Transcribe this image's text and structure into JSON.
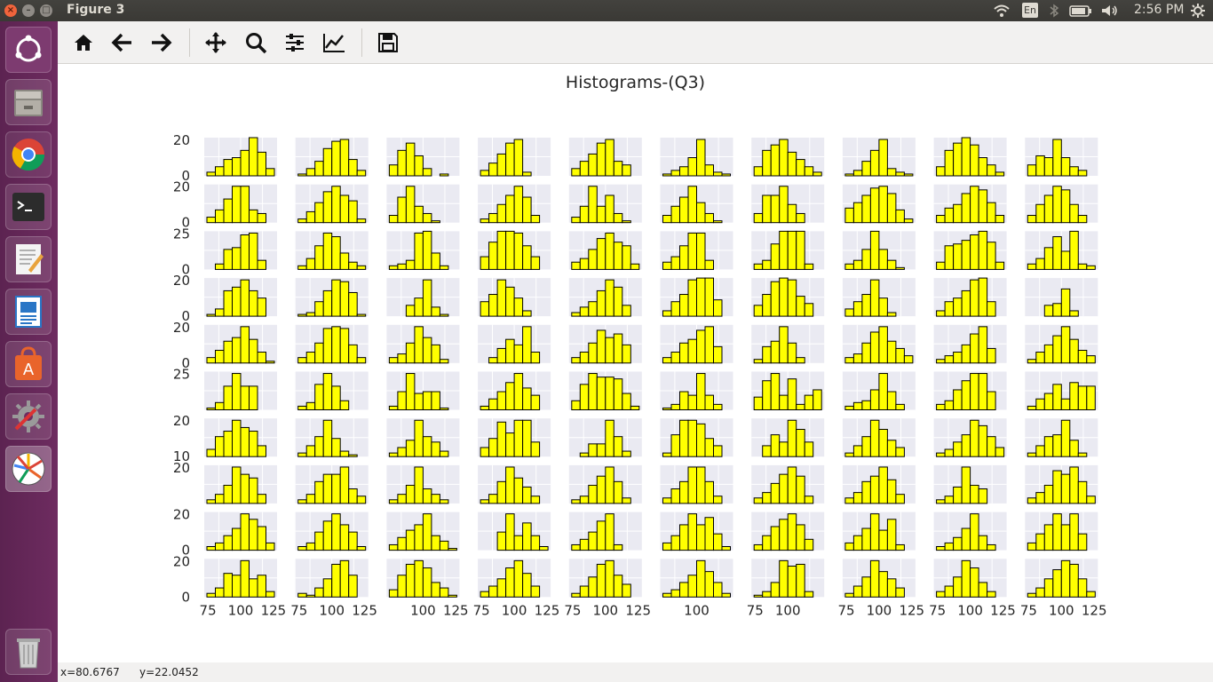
{
  "window": {
    "title": "Figure 3"
  },
  "topbar": {
    "keyboard": "En",
    "clock": "2:56 PM"
  },
  "launcher": {
    "items": [
      "ubuntu-dash-icon",
      "files-icon",
      "chrome-icon",
      "terminal-icon",
      "text-editor-icon",
      "writer-icon",
      "software-center-icon",
      "system-settings-icon",
      "matplotlib-icon",
      "trash-icon"
    ]
  },
  "toolbar": {
    "buttons": [
      "home-icon",
      "back-icon",
      "forward-icon",
      "pan-icon",
      "zoom-icon",
      "configure-subplots-icon",
      "edit-axes-icon",
      "save-icon"
    ]
  },
  "figure": {
    "title": "Histograms-(Q3)"
  },
  "statusbar": {
    "x": "x=80.6767",
    "y": "y=22.0452"
  },
  "chart_data": {
    "type": "bar",
    "grid_rows": 10,
    "grid_cols": 10,
    "bar_color": "#ffff00",
    "edge_color": "#000000",
    "axes_bg": "#eaeaf2",
    "left_ticks": [
      [
        "20",
        "0"
      ],
      [
        "20",
        "0"
      ],
      [
        "25",
        "0"
      ],
      [
        "20",
        "0"
      ],
      [
        "20",
        "0"
      ],
      [
        "25",
        ""
      ],
      [
        "20",
        "10"
      ],
      [
        "20",
        ""
      ],
      [
        "20",
        "0"
      ],
      [
        "20",
        "0"
      ]
    ],
    "bottom_ticks": [
      [
        "75",
        "100",
        "125"
      ],
      [
        "75",
        "100",
        "125"
      ],
      [
        "",
        "100",
        "125"
      ],
      [
        "75",
        "100",
        "125"
      ],
      [
        "75",
        "100",
        "125"
      ],
      [
        "",
        "100",
        ""
      ],
      [
        "75",
        "100",
        ""
      ],
      [
        "75",
        "100",
        "125"
      ],
      [
        "75",
        "100",
        "125"
      ],
      [
        "75",
        "100",
        "125"
      ]
    ],
    "histograms": [
      [
        [
          2,
          5,
          9,
          10,
          14,
          21,
          13,
          4
        ],
        [
          1,
          4,
          8,
          15,
          19,
          20,
          9,
          3
        ],
        [
          6,
          14,
          18,
          11,
          4,
          0,
          1,
          0
        ],
        [
          3,
          7,
          12,
          18,
          20,
          2,
          0,
          0
        ],
        [
          4,
          8,
          12,
          18,
          20,
          8,
          6,
          0
        ],
        [
          1,
          3,
          5,
          10,
          20,
          6,
          2,
          1
        ],
        [
          5,
          14,
          17,
          20,
          13,
          9,
          5,
          2
        ],
        [
          1,
          3,
          8,
          14,
          20,
          4,
          2,
          1
        ],
        [
          5,
          14,
          18,
          25,
          17,
          10,
          6,
          2
        ],
        [
          6,
          11,
          10,
          20,
          10,
          5,
          3,
          0
        ]
      ],
      [
        [
          3,
          7,
          13,
          20,
          20,
          7,
          5,
          0
        ],
        [
          2,
          6,
          11,
          17,
          20,
          15,
          12,
          2
        ],
        [
          4,
          14,
          20,
          9,
          5,
          1,
          0,
          0
        ],
        [
          2,
          5,
          10,
          15,
          20,
          14,
          4,
          0
        ],
        [
          3,
          9,
          20,
          9,
          15,
          5,
          1,
          0
        ],
        [
          4,
          9,
          14,
          20,
          11,
          5,
          1,
          0
        ],
        [
          5,
          15,
          15,
          20,
          10,
          5,
          0,
          0
        ],
        [
          8,
          11,
          15,
          19,
          20,
          16,
          7,
          2
        ],
        [
          4,
          8,
          10,
          16,
          20,
          18,
          11,
          4
        ],
        [
          4,
          10,
          15,
          20,
          18,
          10,
          4,
          0
        ]
      ],
      [
        [
          0,
          3,
          11,
          12,
          19,
          20,
          5,
          0
        ],
        [
          2,
          6,
          13,
          20,
          18,
          9,
          4,
          2
        ],
        [
          2,
          3,
          5,
          20,
          21,
          9,
          2,
          0
        ],
        [
          7,
          15,
          22,
          22,
          20,
          13,
          7,
          0
        ],
        [
          4,
          6,
          11,
          17,
          20,
          15,
          13,
          3
        ],
        [
          4,
          7,
          13,
          20,
          20,
          5,
          0,
          0
        ],
        [
          3,
          5,
          14,
          22,
          25,
          23,
          3,
          0
        ],
        [
          3,
          5,
          11,
          21,
          11,
          5,
          1,
          0
        ],
        [
          4,
          13,
          14,
          16,
          19,
          23,
          15,
          4
        ],
        [
          3,
          6,
          12,
          18,
          10,
          26,
          3,
          2
        ]
      ],
      [
        [
          1,
          4,
          14,
          16,
          20,
          14,
          10,
          0
        ],
        [
          1,
          2,
          8,
          14,
          20,
          19,
          13,
          1
        ],
        [
          0,
          0,
          6,
          10,
          20,
          5,
          1,
          0
        ],
        [
          8,
          12,
          20,
          16,
          10,
          3,
          0,
          0
        ],
        [
          2,
          5,
          8,
          14,
          20,
          16,
          6,
          0
        ],
        [
          3,
          8,
          12,
          20,
          21,
          21,
          9,
          0
        ],
        [
          6,
          12,
          19,
          22,
          20,
          11,
          7,
          0
        ],
        [
          4,
          8,
          12,
          20,
          10,
          2,
          0,
          0
        ],
        [
          3,
          8,
          10,
          14,
          20,
          22,
          8,
          0
        ],
        [
          0,
          0,
          6,
          7,
          15,
          3,
          0,
          0
        ]
      ],
      [
        [
          3,
          7,
          12,
          14,
          20,
          13,
          6,
          1
        ],
        [
          3,
          6,
          11,
          19,
          20,
          19,
          10,
          3
        ],
        [
          3,
          5,
          11,
          20,
          14,
          10,
          2,
          0
        ],
        [
          0,
          3,
          8,
          13,
          10,
          20,
          6,
          0
        ],
        [
          3,
          6,
          11,
          18,
          14,
          16,
          10,
          0
        ],
        [
          3,
          6,
          11,
          13,
          18,
          20,
          9,
          0
        ],
        [
          2,
          9,
          12,
          20,
          11,
          3,
          0,
          0
        ],
        [
          3,
          5,
          11,
          17,
          20,
          12,
          8,
          4
        ],
        [
          2,
          4,
          6,
          10,
          16,
          20,
          8,
          0
        ],
        [
          2,
          6,
          10,
          15,
          20,
          13,
          7,
          4
        ]
      ],
      [
        [
          1,
          4,
          13,
          20,
          13,
          13,
          0,
          0
        ],
        [
          2,
          4,
          14,
          20,
          13,
          5,
          0,
          0
        ],
        [
          2,
          10,
          20,
          9,
          10,
          10,
          1,
          0
        ],
        [
          2,
          6,
          10,
          15,
          20,
          12,
          8,
          0
        ],
        [
          5,
          14,
          20,
          18,
          18,
          17,
          9,
          2
        ],
        [
          1,
          3,
          10,
          8,
          20,
          8,
          3,
          0
        ],
        [
          7,
          16,
          20,
          8,
          17,
          3,
          8,
          11
        ],
        [
          2,
          4,
          5,
          11,
          20,
          10,
          3,
          0
        ],
        [
          3,
          5,
          11,
          16,
          20,
          20,
          10,
          0
        ],
        [
          2,
          6,
          9,
          14,
          6,
          15,
          13,
          13
        ]
      ],
      [
        [
          4,
          11,
          14,
          20,
          16,
          14,
          6,
          0
        ],
        [
          2,
          6,
          11,
          20,
          10,
          3,
          1,
          0
        ],
        [
          2,
          5,
          9,
          20,
          11,
          8,
          3,
          0
        ],
        [
          5,
          10,
          19,
          13,
          20,
          20,
          8,
          0
        ],
        [
          0,
          2,
          7,
          7,
          20,
          11,
          3,
          0
        ],
        [
          2,
          12,
          20,
          20,
          18,
          10,
          6,
          0
        ],
        [
          0,
          6,
          12,
          8,
          20,
          15,
          8,
          0
        ],
        [
          2,
          6,
          11,
          20,
          15,
          9,
          5,
          0
        ],
        [
          2,
          4,
          8,
          12,
          20,
          17,
          11,
          5
        ],
        [
          2,
          6,
          11,
          12,
          20,
          9,
          2,
          0
        ]
      ],
      [
        [
          2,
          5,
          10,
          20,
          16,
          14,
          5,
          0
        ],
        [
          2,
          5,
          12,
          16,
          16,
          20,
          8,
          4
        ],
        [
          2,
          5,
          10,
          20,
          8,
          5,
          2,
          0
        ],
        [
          2,
          5,
          12,
          20,
          14,
          9,
          4,
          0
        ],
        [
          2,
          4,
          10,
          15,
          20,
          12,
          3,
          0
        ],
        [
          3,
          8,
          12,
          20,
          20,
          12,
          4,
          0
        ],
        [
          3,
          6,
          11,
          16,
          20,
          15,
          4,
          0
        ],
        [
          3,
          6,
          12,
          15,
          20,
          13,
          5,
          0
        ],
        [
          2,
          4,
          9,
          20,
          10,
          8,
          0,
          0
        ],
        [
          3,
          6,
          10,
          18,
          16,
          20,
          12,
          4
        ]
      ],
      [
        [
          2,
          4,
          8,
          12,
          20,
          17,
          13,
          4
        ],
        [
          2,
          4,
          10,
          16,
          20,
          14,
          10,
          2
        ],
        [
          3,
          7,
          11,
          14,
          20,
          8,
          5,
          1
        ],
        [
          0,
          0,
          10,
          20,
          8,
          15,
          8,
          2
        ],
        [
          3,
          6,
          10,
          16,
          20,
          3,
          0,
          0
        ],
        [
          4,
          8,
          14,
          20,
          14,
          18,
          9,
          2
        ],
        [
          3,
          8,
          13,
          17,
          20,
          14,
          6,
          0
        ],
        [
          4,
          8,
          12,
          20,
          11,
          17,
          3,
          0
        ],
        [
          2,
          4,
          7,
          12,
          20,
          8,
          3,
          0
        ],
        [
          4,
          9,
          14,
          20,
          14,
          20,
          9,
          0
        ]
      ],
      [
        [
          2,
          5,
          13,
          12,
          20,
          10,
          12,
          3
        ],
        [
          2,
          1,
          5,
          10,
          18,
          20,
          12,
          0
        ],
        [
          4,
          12,
          18,
          20,
          16,
          8,
          5,
          1
        ],
        [
          3,
          6,
          10,
          16,
          20,
          13,
          6,
          0
        ],
        [
          2,
          6,
          11,
          18,
          20,
          12,
          7,
          0
        ],
        [
          2,
          4,
          8,
          12,
          20,
          14,
          8,
          2
        ],
        [
          1,
          3,
          8,
          20,
          17,
          18,
          3,
          0
        ],
        [
          2,
          6,
          11,
          20,
          14,
          10,
          5,
          0
        ],
        [
          3,
          6,
          11,
          20,
          16,
          8,
          3,
          0
        ],
        [
          2,
          5,
          10,
          15,
          20,
          18,
          10,
          3
        ]
      ]
    ]
  }
}
